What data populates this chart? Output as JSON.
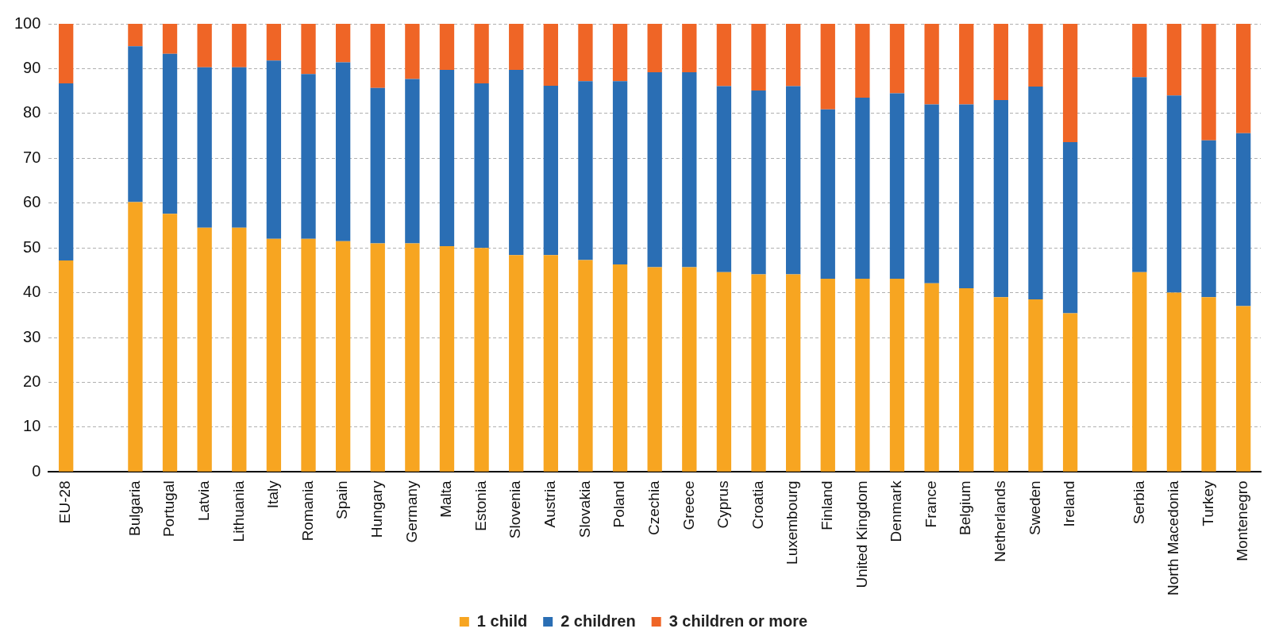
{
  "chart_data": {
    "type": "bar",
    "stacked": true,
    "categories": [
      "EU-28",
      null,
      "Bulgaria",
      "Portugal",
      "Latvia",
      "Lithuania",
      "Italy",
      "Romania",
      "Spain",
      "Hungary",
      "Germany",
      "Malta",
      "Estonia",
      "Slovenia",
      "Austria",
      "Slovakia",
      "Poland",
      "Czechia",
      "Greece",
      "Cyprus",
      "Croatia",
      "Luxembourg",
      "Finland",
      "United Kingdom",
      "Denmark",
      "France",
      "Belgium",
      "Netherlands",
      "Sweden",
      "Ireland",
      null,
      "Serbia",
      "North Macedonia",
      "Turkey",
      "Montenegro"
    ],
    "series": [
      {
        "name": "1 child",
        "color": "#f7a521",
        "values": [
          47.2,
          null,
          60.2,
          57.6,
          54.5,
          54.5,
          52,
          52,
          51.5,
          51,
          51,
          50.4,
          50,
          48.4,
          48.4,
          47.3,
          46.3,
          45.7,
          45.7,
          44.6,
          44.1,
          44.1,
          43.1,
          43.1,
          43.1,
          42.1,
          41,
          39,
          38.5,
          35.4,
          null,
          44.6,
          40,
          39,
          37
        ]
      },
      {
        "name": "2 children",
        "color": "#2a6eb4",
        "values": [
          39.5,
          null,
          34.8,
          35.7,
          35.8,
          35.8,
          39.8,
          36.8,
          39.9,
          34.7,
          36.7,
          39.3,
          36.7,
          41.3,
          37.8,
          39.9,
          40.9,
          43.5,
          43.5,
          41.5,
          41,
          42,
          37.8,
          40.4,
          41.4,
          39.9,
          41,
          44,
          47.5,
          38.2,
          null,
          43.5,
          44,
          35,
          38.6
        ]
      },
      {
        "name": "3 children or more",
        "color": "#ef6526",
        "values": [
          13.3,
          null,
          5,
          6.7,
          9.7,
          9.7,
          8.2,
          11.2,
          8.6,
          14.3,
          12.3,
          10.3,
          13.3,
          10.3,
          13.8,
          12.8,
          12.8,
          10.8,
          10.8,
          13.9,
          14.9,
          13.9,
          19.1,
          16.5,
          15.5,
          18,
          18,
          17,
          14,
          26.4,
          null,
          11.9,
          16,
          26,
          24.4
        ]
      }
    ],
    "ylim": [
      0,
      100
    ],
    "yticks": [
      0,
      10,
      20,
      30,
      40,
      50,
      60,
      70,
      80,
      90,
      100
    ],
    "grid": "y",
    "legend": "bottom"
  }
}
